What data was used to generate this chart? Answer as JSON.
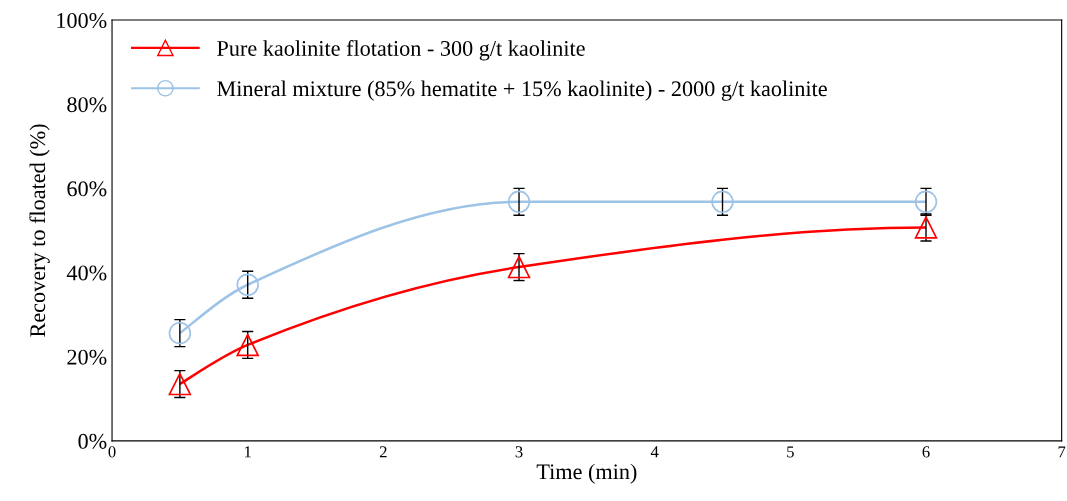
{
  "chart_data": {
    "type": "line",
    "xlabel": "Time (min)",
    "ylabel": "Recovery to floated (%)",
    "xlim": [
      0,
      7
    ],
    "xticks": [
      0,
      1,
      2,
      3,
      4,
      5,
      6,
      7
    ],
    "ylim": [
      0,
      100
    ],
    "yticks": [
      {
        "value": 0,
        "label": "0%"
      },
      {
        "value": 20,
        "label": "20%"
      },
      {
        "value": 40,
        "label": "40%"
      },
      {
        "value": 60,
        "label": "60%"
      },
      {
        "value": 80,
        "label": "80%"
      },
      {
        "value": 100,
        "label": "100%"
      }
    ],
    "grid": false,
    "legend": "top left",
    "line_style": "solid",
    "series": [
      {
        "name": "Pure kaolinite flotation - 300 g/t kaolinite",
        "color": "#ff0000",
        "marker": "triangle",
        "x": [
          0.5,
          1,
          3,
          6
        ],
        "values": [
          13.5,
          22.8,
          41.3,
          50.7
        ],
        "errors": [
          3.2,
          3.2,
          3.2,
          3.2
        ]
      },
      {
        "name": "Mineral mixture (85% hematite + 15% kaolinite) - 2000 g/t kaolinite",
        "color": "#9dc3e6",
        "marker": "circle",
        "x": [
          0.5,
          1,
          3,
          4.5,
          6
        ],
        "values": [
          25.6,
          37.1,
          56.8,
          56.8,
          56.8
        ],
        "errors": [
          3.2,
          3.2,
          3.2,
          3.2,
          3.2
        ]
      }
    ]
  }
}
